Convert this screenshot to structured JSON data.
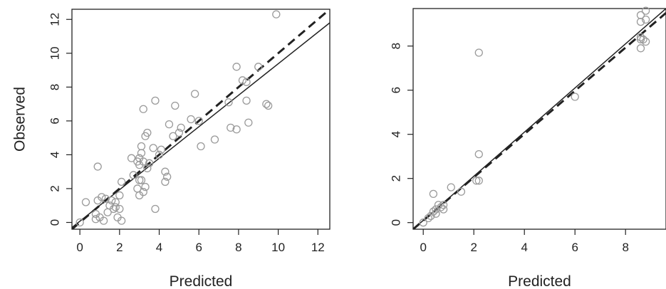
{
  "colors": {
    "points": "#9a9a9a",
    "axes": "#222222",
    "solid_line": "#222222",
    "dashed_line": "#222222"
  },
  "chart_data": [
    {
      "type": "scatter",
      "xlabel": "Predicted",
      "ylabel": "Observed",
      "xlim": [
        -0.4,
        12.6
      ],
      "ylim": [
        -0.4,
        12.6
      ],
      "xticks": [
        0,
        2,
        4,
        6,
        8,
        10,
        12
      ],
      "yticks": [
        0,
        2,
        4,
        6,
        8,
        10,
        12
      ],
      "grid": false,
      "reference_lines": [
        {
          "style": "solid",
          "x": [
            -0.4,
            12.6
          ],
          "y": [
            -0.3,
            11.8
          ]
        },
        {
          "style": "dashed",
          "x": [
            -0.4,
            12.6
          ],
          "y": [
            -0.4,
            12.6
          ]
        }
      ],
      "points": [
        [
          0.0,
          0.0
        ],
        [
          0.3,
          1.2
        ],
        [
          0.8,
          0.5
        ],
        [
          0.8,
          0.2
        ],
        [
          0.9,
          1.3
        ],
        [
          0.9,
          3.3
        ],
        [
          1.0,
          0.3
        ],
        [
          1.1,
          1.5
        ],
        [
          1.2,
          0.1
        ],
        [
          1.3,
          1.4
        ],
        [
          1.4,
          0.6
        ],
        [
          1.5,
          1.0
        ],
        [
          1.6,
          1.3
        ],
        [
          1.7,
          0.8
        ],
        [
          1.8,
          1.2
        ],
        [
          1.8,
          0.9
        ],
        [
          1.9,
          0.3
        ],
        [
          2.0,
          0.8
        ],
        [
          2.0,
          1.6
        ],
        [
          2.1,
          0.1
        ],
        [
          2.1,
          2.4
        ],
        [
          2.6,
          3.8
        ],
        [
          2.7,
          2.8
        ],
        [
          2.9,
          2.0
        ],
        [
          2.9,
          3.6
        ],
        [
          3.0,
          3.8
        ],
        [
          3.0,
          3.4
        ],
        [
          3.0,
          1.6
        ],
        [
          3.0,
          2.5
        ],
        [
          3.1,
          4.5
        ],
        [
          3.1,
          4.1
        ],
        [
          3.1,
          2.5
        ],
        [
          3.2,
          6.7
        ],
        [
          3.2,
          1.8
        ],
        [
          3.2,
          3.6
        ],
        [
          3.3,
          5.1
        ],
        [
          3.3,
          2.1
        ],
        [
          3.4,
          5.3
        ],
        [
          3.4,
          3.2
        ],
        [
          3.5,
          3.5
        ],
        [
          3.7,
          4.4
        ],
        [
          3.8,
          7.2
        ],
        [
          3.8,
          0.8
        ],
        [
          4.0,
          4.0
        ],
        [
          4.1,
          4.3
        ],
        [
          4.3,
          3.0
        ],
        [
          4.3,
          2.4
        ],
        [
          4.4,
          2.7
        ],
        [
          4.5,
          5.8
        ],
        [
          4.7,
          5.1
        ],
        [
          4.8,
          6.9
        ],
        [
          5.0,
          5.3
        ],
        [
          5.1,
          5.6
        ],
        [
          5.6,
          6.1
        ],
        [
          5.8,
          7.6
        ],
        [
          6.0,
          6.0
        ],
        [
          6.1,
          4.5
        ],
        [
          6.8,
          4.9
        ],
        [
          7.5,
          7.1
        ],
        [
          7.6,
          5.6
        ],
        [
          7.9,
          9.2
        ],
        [
          7.9,
          5.5
        ],
        [
          8.2,
          8.4
        ],
        [
          8.4,
          8.3
        ],
        [
          8.4,
          7.2
        ],
        [
          8.5,
          5.9
        ],
        [
          9.0,
          9.2
        ],
        [
          9.4,
          7.0
        ],
        [
          9.5,
          6.9
        ],
        [
          9.9,
          12.3
        ]
      ]
    },
    {
      "type": "scatter",
      "xlabel": "Predicted",
      "ylabel": "",
      "xlim": [
        -0.4,
        9.6
      ],
      "ylim": [
        -0.3,
        9.7
      ],
      "xticks": [
        0,
        2,
        4,
        6,
        8
      ],
      "yticks": [
        0,
        2,
        4,
        6,
        8
      ],
      "grid": false,
      "reference_lines": [
        {
          "style": "solid",
          "x": [
            -0.4,
            9.6
          ],
          "y": [
            -0.3,
            9.7
          ]
        },
        {
          "style": "dashed",
          "x": [
            -0.4,
            9.6
          ],
          "y": [
            -0.3,
            9.5
          ]
        }
      ],
      "points": [
        [
          0.0,
          0.0
        ],
        [
          0.2,
          0.2
        ],
        [
          0.3,
          0.3
        ],
        [
          0.4,
          0.5
        ],
        [
          0.4,
          1.3
        ],
        [
          0.5,
          0.4
        ],
        [
          0.5,
          0.6
        ],
        [
          0.6,
          0.8
        ],
        [
          0.7,
          0.7
        ],
        [
          0.8,
          0.6
        ],
        [
          0.8,
          0.8
        ],
        [
          1.1,
          1.6
        ],
        [
          1.5,
          1.4
        ],
        [
          2.1,
          1.9
        ],
        [
          2.2,
          1.9
        ],
        [
          2.2,
          3.1
        ],
        [
          2.2,
          7.7
        ],
        [
          6.0,
          5.7
        ],
        [
          8.6,
          7.9
        ],
        [
          8.6,
          8.3
        ],
        [
          8.6,
          8.4
        ],
        [
          8.6,
          9.1
        ],
        [
          8.6,
          9.4
        ],
        [
          8.7,
          8.3
        ],
        [
          8.8,
          9.2
        ],
        [
          8.8,
          9.6
        ],
        [
          8.8,
          8.2
        ]
      ]
    }
  ]
}
